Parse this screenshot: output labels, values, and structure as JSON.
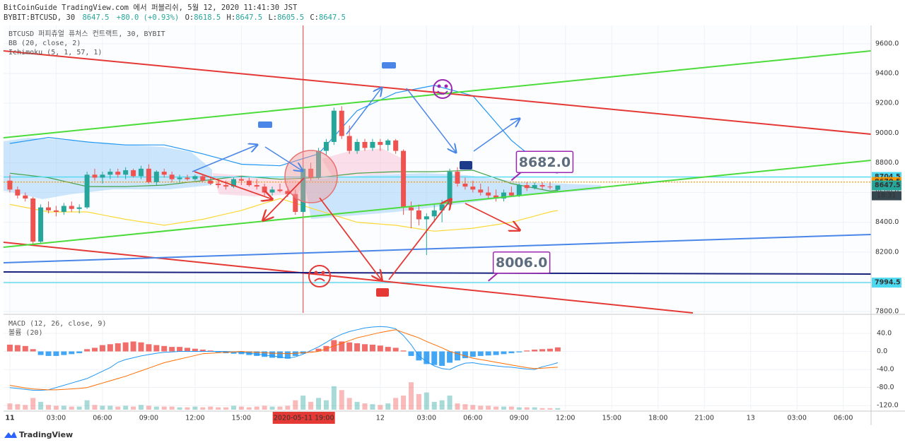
{
  "header": {
    "publisher": "BitCoinGuide TradingView.com 에서 퍼블리쉬, 5월 12, 2020 11:41:30 JST",
    "symbol": "BYBIT:BTCUSD, 30",
    "last": "8647.5",
    "change": "+80.0 (+0.93%)",
    "ohlc": [
      {
        "key": "O:",
        "value": "8618.5"
      },
      {
        "key": "H:",
        "value": "8647.5"
      },
      {
        "key": "L:",
        "value": "8605.5"
      },
      {
        "key": "C:",
        "value": "8647.5"
      }
    ]
  },
  "footer": {
    "brand": "TradingView"
  },
  "chart_data": [
    {
      "type": "candlestick",
      "title": "BTCUSD 퍼피츄얼 퓨처스 컨트랙트, 30, BYBIT",
      "indicators": [
        "BB (20, close, 2)",
        "Ichimoku (5, 1, 57, 1)"
      ],
      "up_color": "#26a69a",
      "down_color": "#ef5350",
      "x": [
        0,
        0.5,
        1,
        1.5,
        2,
        2.5,
        3,
        3.5,
        4,
        4.5,
        5,
        5.5,
        6,
        6.5,
        7,
        7.5,
        8,
        8.5,
        9,
        9.5,
        10,
        10.5,
        11,
        11.5,
        12,
        12.5,
        13,
        13.5,
        14,
        14.5,
        15,
        15.5,
        16,
        16.5,
        17,
        17.5,
        18,
        18.5,
        19,
        19.5,
        20,
        20.5,
        21,
        21.5,
        22,
        22.5,
        23,
        23.5,
        24,
        24.5,
        25,
        25.5,
        26,
        26.5,
        27,
        27.5,
        28,
        28.5,
        29,
        29.5,
        30,
        30.5,
        31,
        31.5,
        32,
        32.5,
        33,
        33.5,
        34,
        34.5,
        35,
        35.5
      ],
      "open": [
        8680,
        8620,
        8580,
        8560,
        8270,
        8500,
        8480,
        8470,
        8510,
        8490,
        8500,
        8720,
        8700,
        8720,
        8740,
        8720,
        8750,
        8710,
        8760,
        8670,
        8740,
        8720,
        8690,
        8700,
        8690,
        8710,
        8680,
        8660,
        8650,
        8640,
        8690,
        8680,
        8650,
        8640,
        8600,
        8620,
        8610,
        8590,
        8470,
        8760,
        8700,
        8880,
        8940,
        9150,
        8980,
        8880,
        8940,
        8900,
        8940,
        8920,
        8950,
        8880,
        8500,
        8480,
        8420,
        8440,
        8480,
        8520,
        8740,
        8660,
        8640,
        8620,
        8600,
        8580,
        8560,
        8600,
        8580,
        8650,
        8630,
        8650,
        8640,
        8618.5
      ],
      "high": [
        8720,
        8640,
        8600,
        8570,
        8520,
        8540,
        8510,
        8530,
        8540,
        8520,
        8740,
        8760,
        8740,
        8760,
        8760,
        8770,
        8760,
        8780,
        8790,
        8750,
        8760,
        8740,
        8720,
        8720,
        8720,
        8720,
        8700,
        8690,
        8680,
        8700,
        8710,
        8700,
        8690,
        8660,
        8640,
        8660,
        8640,
        8620,
        8780,
        8800,
        8900,
        8960,
        9170,
        9180,
        9050,
        8960,
        8960,
        8960,
        8960,
        8960,
        8960,
        8890,
        8540,
        8520,
        8460,
        8520,
        8550,
        8760,
        8770,
        8700,
        8680,
        8660,
        8640,
        8620,
        8620,
        8640,
        8660,
        8670,
        8670,
        8670,
        8670,
        8647.5
      ],
      "low": [
        8600,
        8560,
        8540,
        8250,
        8260,
        8460,
        8440,
        8450,
        8470,
        8460,
        8490,
        8680,
        8660,
        8690,
        8700,
        8690,
        8700,
        8690,
        8660,
        8650,
        8700,
        8670,
        8670,
        8680,
        8680,
        8670,
        8650,
        8630,
        8620,
        8630,
        8650,
        8640,
        8620,
        8580,
        8580,
        8600,
        8570,
        8450,
        8460,
        8680,
        8690,
        8850,
        8920,
        8960,
        8860,
        8860,
        8880,
        8880,
        8880,
        8880,
        8860,
        8450,
        8360,
        8380,
        8180,
        8400,
        8400,
        8500,
        8640,
        8620,
        8600,
        8580,
        8560,
        8540,
        8540,
        8570,
        8570,
        8610,
        8620,
        8620,
        8620,
        8605.5
      ],
      "close": [
        8620,
        8580,
        8560,
        8270,
        8500,
        8480,
        8470,
        8510,
        8490,
        8500,
        8720,
        8700,
        8720,
        8740,
        8720,
        8750,
        8710,
        8760,
        8670,
        8740,
        8720,
        8690,
        8700,
        8690,
        8710,
        8680,
        8660,
        8650,
        8640,
        8690,
        8680,
        8650,
        8640,
        8600,
        8620,
        8610,
        8590,
        8470,
        8760,
        8700,
        8880,
        8940,
        9150,
        8980,
        8880,
        8940,
        8900,
        8940,
        8920,
        8950,
        8880,
        8500,
        8480,
        8420,
        8440,
        8480,
        8520,
        8740,
        8660,
        8640,
        8620,
        8600,
        8580,
        8560,
        8600,
        8580,
        8650,
        8630,
        8650,
        8640,
        8635,
        8647.5
      ],
      "overlays": [
        {
          "color": "#2196f3",
          "values": [
            8930,
            8938,
            8946,
            8954,
            8962,
            8970,
            8964,
            8958,
            8952,
            8946,
            8940,
            8936,
            8932,
            8928,
            8924,
            8920,
            8920,
            8920,
            8920,
            8920,
            8920,
            8908,
            8896,
            8884,
            8872,
            8860,
            8846,
            8832,
            8818,
            8804,
            8790,
            8788,
            8786,
            8784,
            8782,
            8780,
            8796,
            8812,
            8828,
            8844,
            8860,
            8918,
            8976,
            9034,
            9092,
            9150,
            9174,
            9198,
            9222,
            9246,
            9270,
            9280,
            9290,
            9300,
            9310,
            9320,
            9306,
            9292,
            9278,
            9264,
            9250,
            9190,
            9130,
            9070,
            9010,
            8950,
            8908,
            8866,
            8824,
            8782,
            8740,
            8730
          ]
        },
        {
          "color": "#43a047",
          "values": [
            8730,
            8724,
            8718,
            8712,
            8706,
            8700,
            8688,
            8676,
            8664,
            8652,
            8640,
            8640,
            8640,
            8640,
            8640,
            8640,
            8642,
            8644,
            8646,
            8648,
            8650,
            8656,
            8662,
            8668,
            8674,
            8680,
            8686,
            8692,
            8698,
            8704,
            8710,
            8706,
            8702,
            8698,
            8694,
            8690,
            8692,
            8694,
            8696,
            8698,
            8700,
            8706,
            8712,
            8718,
            8724,
            8730,
            8732,
            8734,
            8736,
            8738,
            8740,
            8740,
            8740,
            8740,
            8740,
            8740,
            8742,
            8744,
            8746,
            8748,
            8750,
            8732,
            8714,
            8696,
            8678,
            8660,
            8650,
            8640,
            8630,
            8620,
            8610,
            8615
          ]
        },
        {
          "color": "#fdd835",
          "values": [
            8520,
            8510,
            8500,
            8490,
            8480,
            8470,
            8470,
            8470,
            8470,
            8470,
            8470,
            8460,
            8450,
            8440,
            8430,
            8420,
            8412,
            8404,
            8396,
            8388,
            8380,
            8388,
            8396,
            8404,
            8412,
            8420,
            8432,
            8444,
            8456,
            8468,
            8480,
            8496,
            8512,
            8528,
            8544,
            8560,
            8544,
            8528,
            8512,
            8496,
            8480,
            8464,
            8448,
            8432,
            8416,
            8400,
            8396,
            8392,
            8388,
            8384,
            8380,
            8372,
            8364,
            8356,
            8348,
            8340,
            8344,
            8348,
            8352,
            8356,
            8360,
            8368,
            8376,
            8384,
            8392,
            8400,
            8414,
            8428,
            8442,
            8456,
            8470,
            8480
          ]
        }
      ],
      "xlim": [
        -0.41,
        55.8
      ],
      "xticks": [
        {
          "value": 0,
          "label": "11"
        },
        {
          "value": 3,
          "label": "03:00"
        },
        {
          "value": 6,
          "label": "06:00"
        },
        {
          "value": 9,
          "label": "09:00"
        },
        {
          "value": 12,
          "label": "12:00"
        },
        {
          "value": 15,
          "label": "15:00"
        },
        {
          "value": 24,
          "label": "12"
        },
        {
          "value": 27,
          "label": "03:00"
        },
        {
          "value": 30,
          "label": "06:00"
        },
        {
          "value": 33,
          "label": "09:00"
        },
        {
          "value": 36,
          "label": "12:00"
        },
        {
          "value": 39,
          "label": "15:00"
        },
        {
          "value": 42,
          "label": "18:00"
        },
        {
          "value": 45,
          "label": "21:00"
        },
        {
          "value": 48,
          "label": "13"
        },
        {
          "value": 51,
          "label": "03:00"
        },
        {
          "value": 54,
          "label": "06:00"
        }
      ],
      "ylim": [
        7791,
        9723
      ],
      "yticks": [
        {
          "value": 7800,
          "label": "7800.0"
        },
        {
          "value": 8000,
          "label": "8000.0"
        },
        {
          "value": 8200,
          "label": "8200.0"
        },
        {
          "value": 8400,
          "label": "8400.0"
        },
        {
          "value": 8600,
          "label": "8600.0"
        },
        {
          "value": 8800,
          "label": "8800.0"
        },
        {
          "value": 9000,
          "label": "9000.0"
        },
        {
          "value": 9200,
          "label": "9200.0"
        },
        {
          "value": 9400,
          "label": "9400.0"
        },
        {
          "value": 9600,
          "label": "9600.0"
        }
      ],
      "grid": true,
      "cursor": {
        "x": 19,
        "label": "2020-05-11  19:00"
      },
      "price_labels": [
        {
          "value": 8704.5,
          "color": "#4dd9f0",
          "text_color": "#000",
          "line": "solid"
        },
        {
          "value": 8670.5,
          "color": "#ff9800",
          "text_color": "#fff",
          "line": "dotted"
        },
        {
          "value": 8647.5,
          "color": "#26a69a",
          "text_color": "#fff"
        },
        {
          "value": 7994.5,
          "color": "#4dd9f0",
          "text_color": "#000",
          "line": "solid"
        }
      ],
      "countdown": "18:31",
      "annotations": [
        {
          "x": 32.5,
          "value": 8682,
          "label": "8682.0"
        },
        {
          "x": 31,
          "value": 8006,
          "label": "8006.0"
        }
      ]
    },
    {
      "type": "macd",
      "title": "MACD (12, 26, close, 9)",
      "volume_title": "볼륨 (20)",
      "ylim": [
        -129,
        79
      ],
      "yticks": [
        {
          "value": 40,
          "label": "40.0"
        },
        {
          "value": 0,
          "label": "0.0"
        },
        {
          "value": -40,
          "label": "-40.0"
        },
        {
          "value": -80,
          "label": "-80.0"
        },
        {
          "value": -120,
          "label": "-120.0"
        }
      ],
      "histogram": {
        "colors": [
          "#ef5350",
          "#2196f3"
        ],
        "values": [
          15,
          14,
          12,
          5,
          -8,
          -10,
          -10,
          -8,
          -6,
          -4,
          5,
          8,
          14,
          16,
          18,
          20,
          22,
          20,
          16,
          14,
          12,
          10,
          10,
          8,
          6,
          4,
          2,
          -2,
          -4,
          -5,
          -6,
          -8,
          -10,
          -12,
          -14,
          -15,
          -16,
          -10,
          -5,
          0,
          6,
          12,
          25,
          22,
          20,
          18,
          16,
          15,
          13,
          10,
          8,
          2,
          -10,
          -20,
          -28,
          -30,
          -32,
          -25,
          -20,
          -15,
          -12,
          -10,
          -9,
          -8,
          -6,
          -4,
          -2,
          2,
          4,
          5,
          6,
          9
        ]
      },
      "lines": [
        {
          "color": "#2196f3",
          "values": [
            -80,
            -82,
            -84,
            -86,
            -86,
            -85,
            -80,
            -75,
            -70,
            -65,
            -60,
            -52,
            -44,
            -36,
            -24,
            -18,
            -14,
            -10,
            -7,
            -4,
            -2,
            -1,
            0,
            0,
            0,
            0,
            0,
            0,
            0,
            -1,
            -2,
            -4,
            -6,
            -8,
            -10,
            -12,
            -15,
            -12,
            -6,
            2,
            10,
            20,
            30,
            38,
            44,
            48,
            52,
            54,
            55,
            54,
            50,
            35,
            15,
            -10,
            -22,
            -32,
            -38,
            -40,
            -32,
            -26,
            -25,
            -28,
            -30,
            -32,
            -34,
            -35,
            -37,
            -39,
            -40,
            -34,
            -30,
            -25
          ]
        },
        {
          "color": "#ff6d00",
          "values": [
            -75,
            -78,
            -81,
            -83,
            -84,
            -85,
            -85,
            -84,
            -83,
            -82,
            -80,
            -75,
            -70,
            -65,
            -60,
            -55,
            -49,
            -43,
            -37,
            -31,
            -25,
            -21,
            -17,
            -13,
            -9,
            -5,
            -4,
            -3,
            -2,
            -1,
            0,
            -1,
            -2,
            -3,
            -4,
            -4,
            -5,
            -4,
            -3,
            -2,
            0,
            6,
            12,
            18,
            24,
            30,
            34,
            38,
            42,
            45,
            48,
            42,
            36,
            30,
            22,
            15,
            8,
            0,
            -5,
            -10,
            -15,
            -18,
            -21,
            -24,
            -27,
            -30,
            -33,
            -36,
            -38,
            -37,
            -36,
            -35
          ]
        }
      ],
      "volume": {
        "axis": "y2",
        "values": [
          8,
          7,
          6,
          15,
          10,
          6,
          5,
          5,
          4,
          4,
          12,
          6,
          5,
          5,
          4,
          5,
          4,
          6,
          5,
          4,
          4,
          4,
          3,
          3,
          4,
          3,
          4,
          3,
          3,
          5,
          4,
          3,
          4,
          5,
          4,
          4,
          5,
          12,
          18,
          10,
          15,
          12,
          30,
          25,
          15,
          10,
          8,
          7,
          6,
          8,
          15,
          18,
          35,
          20,
          22,
          10,
          12,
          18,
          8,
          7,
          6,
          5,
          5,
          4,
          4,
          4,
          3,
          3,
          3,
          2,
          2,
          2
        ]
      },
      "y2lim": [
        0,
        120
      ]
    }
  ]
}
